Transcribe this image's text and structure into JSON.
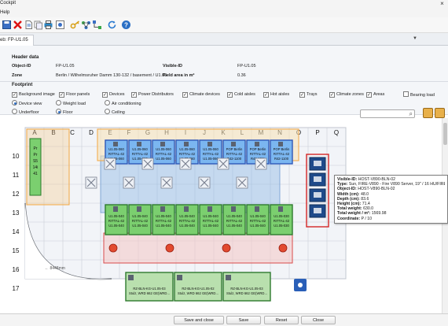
{
  "window": {
    "title": "Cockpit",
    "menu": "Help",
    "close_label": "×"
  },
  "tab": {
    "label": "eb: FP-U1.05",
    "dropdown": "▼"
  },
  "header": {
    "title": "Header data",
    "object_id_label": "Object-ID",
    "object_id": "FP-U1.05",
    "visible_id_label": "Visible-ID",
    "visible_id": "FP-U1.05",
    "zone_label": "Zone",
    "zone": "Berlin / Wilhelmsruher Damm 130-132 / basement / U1.05",
    "field_area_label": "Field area in m²",
    "field_area": "0.36"
  },
  "footprint": {
    "title": "Footprint",
    "checkboxes": [
      {
        "label": "Background image",
        "checked": true
      },
      {
        "label": "Floor panels",
        "checked": true
      },
      {
        "label": "Devices",
        "checked": true
      },
      {
        "label": "Power Distributors",
        "checked": true
      },
      {
        "label": "Climate devices",
        "checked": true
      },
      {
        "label": "Cold aisles",
        "checked": true
      },
      {
        "label": "Hot aisles",
        "checked": true
      },
      {
        "label": "Trays",
        "checked": true
      },
      {
        "label": "Climate zones",
        "checked": true
      },
      {
        "label": "Areas",
        "checked": true
      },
      {
        "label": "Bearing load",
        "checked": false
      }
    ],
    "views": [
      "Device view",
      "Weight load",
      "Air conditioning"
    ],
    "levels": [
      "Underfloor",
      "Floor",
      "Ceiling"
    ]
  },
  "grid": {
    "columns": [
      "A",
      "B",
      "C",
      "D",
      "E",
      "F",
      "G",
      "H",
      "I",
      "J",
      "K",
      "L",
      "M",
      "N",
      "O",
      "P",
      "Q"
    ],
    "rows": [
      "10",
      "11",
      "12",
      "13",
      "14",
      "15",
      "16",
      "17"
    ]
  },
  "racks_row10": [
    {
      "lines": [
        "U1.05-060",
        "RITTAL-42",
        "U1.05-060"
      ]
    },
    {
      "lines": [
        "U1.05-060",
        "RITTAL-42",
        "U1.05-060"
      ]
    },
    {
      "lines": [
        "U1.05-060",
        "RITTAL-42",
        "U1.05-060"
      ]
    },
    {
      "lines": [
        "U1.05-060",
        "RITTAL-42",
        "U1.05-060"
      ]
    },
    {
      "lines": [
        "U1.05-060",
        "RITTAL-42",
        "U1.05-060"
      ]
    },
    {
      "lines": [
        "POP Berlin",
        "RITTAL-42",
        "R42-1100"
      ]
    },
    {
      "lines": [
        "POP Berlin",
        "RITTAL-42",
        "R42-1211"
      ]
    },
    {
      "lines": [
        "POP Berlin",
        "RITTAL-42",
        "R42-1100"
      ]
    }
  ],
  "racks_row13": [
    {
      "lines": [
        "U1.05-040",
        "RITTAL-42",
        "U1.05-040"
      ]
    },
    {
      "lines": [
        "U1.05-040",
        "RITTAL-42",
        "U1.05-040"
      ]
    },
    {
      "lines": [
        "U1.05-040",
        "RITTAL-42",
        "U1.05-040"
      ]
    },
    {
      "lines": [
        "U1.05-040",
        "RITTAL-42",
        "U1.05-040"
      ]
    },
    {
      "lines": [
        "U1.05-040",
        "RITTAL-42",
        "U1.05-040"
      ]
    },
    {
      "lines": [
        "U1.05-040",
        "RITTAL-42",
        "U1.05-040"
      ]
    },
    {
      "lines": [
        "U1.05-040",
        "RITTAL-42",
        "U1.05-040"
      ]
    },
    {
      "lines": [
        "U1.05-030",
        "RITTAL-42",
        "U1.05-030"
      ]
    }
  ],
  "racks_row17": [
    {
      "lines": [
        "RZ-BLN-KG-U1.05-03",
        "Stulz, WRD 662 GE(WRD..."
      ]
    },
    {
      "lines": [
        "RZ-BLN-KG-U1.05-02",
        "Stulz, WRD 662 GE(WRD..."
      ]
    },
    {
      "lines": [
        "RZ-BLN-KG-U1.05-03",
        "Stulz, WRD 662 GE(WRD..."
      ]
    }
  ],
  "left_panel_lines": [
    "Pr",
    "Pr",
    "S5",
    "14i",
    "41"
  ],
  "wall_label": "← 8448mm",
  "tooltip": {
    "visible_id_label": "Visible-ID:",
    "visible_id": "HOST-V890-BLN-02",
    "type_label": "Type:",
    "type": "Sun, FIRE-V890 - Fire V890 Server, 19\" / 16 HU/FIRE",
    "object_id_label": "Object-ID:",
    "object_id": "HOST-V890-BLN-02",
    "width_label": "Width (cm):",
    "width": "48.0",
    "depth_label": "Depth (cm):",
    "depth": "83.6",
    "height_label": "Height (cm):",
    "height": "71.4",
    "total_weight_label": "Total weight:",
    "total_weight": "630.0",
    "total_weight_m2_label": "Total weight / m²:",
    "total_weight_m2": "1569.98",
    "coordinate_label": "Coordinate:",
    "coordinate": "P / 10"
  },
  "buttons": {
    "save_close": "Save and close",
    "save": "Save",
    "reset": "Reset",
    "close": "Close"
  },
  "colors": {
    "accent": "#2f6cbf",
    "rack_blue": "#2e57b8",
    "rack_green": "#7bcf6f",
    "cold_aisle": "#f3a640",
    "hot_aisle": "#d94a4a",
    "climate_zone": "#8fb7e4",
    "selected": "#d42626"
  }
}
